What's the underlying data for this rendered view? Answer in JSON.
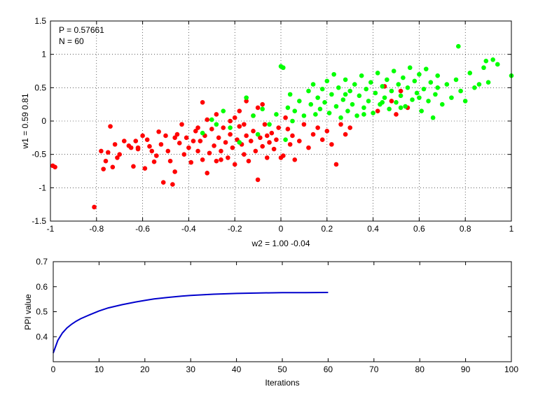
{
  "chart_data": [
    {
      "type": "scatter",
      "title": "",
      "xlabel": "w2 = 1.00  -0.04",
      "ylabel": "w1 = 0.59  0.81",
      "xlim": [
        -1,
        1
      ],
      "ylim": [
        -1.5,
        1.5
      ],
      "xticks": [
        -1,
        -0.8,
        -0.6,
        -0.4,
        -0.2,
        0,
        0.2,
        0.4,
        0.6,
        0.8,
        1
      ],
      "yticks": [
        -1.5,
        -1,
        -0.5,
        0,
        0.5,
        1,
        1.5
      ],
      "xtick_labels": [
        "-1",
        "-0.8",
        "-0.6",
        "-0.4",
        "-0.2",
        "0",
        "0.2",
        "0.4",
        "0.6",
        "0.8",
        "1"
      ],
      "ytick_labels": [
        "-1.5",
        "-1",
        "-0.5",
        "0",
        "0.5",
        "1",
        "1.5"
      ],
      "grid": true,
      "annotations": [
        "P = 0.57661",
        "N = 60"
      ],
      "series": [
        {
          "color": "#ff0000",
          "points": [
            [
              -0.99,
              -0.67
            ],
            [
              -0.98,
              -0.69
            ],
            [
              -0.81,
              -1.29
            ],
            [
              -0.78,
              -0.45
            ],
            [
              -0.77,
              -0.72
            ],
            [
              -0.76,
              -0.6
            ],
            [
              -0.75,
              -0.47
            ],
            [
              -0.74,
              -0.08
            ],
            [
              -0.73,
              -0.69
            ],
            [
              -0.72,
              -0.35
            ],
            [
              -0.71,
              -0.55
            ],
            [
              -0.7,
              -0.5
            ],
            [
              -0.68,
              -0.3
            ],
            [
              -0.66,
              -0.37
            ],
            [
              -0.65,
              -0.4
            ],
            [
              -0.64,
              -0.68
            ],
            [
              -0.63,
              -0.3
            ],
            [
              -0.62,
              -0.42
            ],
            [
              -0.6,
              -0.22
            ],
            [
              -0.59,
              -0.71
            ],
            [
              -0.58,
              -0.28
            ],
            [
              -0.57,
              -0.38
            ],
            [
              -0.55,
              -0.61
            ],
            [
              -0.54,
              -0.52
            ],
            [
              -0.53,
              -0.16
            ],
            [
              -0.52,
              -0.35
            ],
            [
              -0.51,
              -0.92
            ],
            [
              -0.5,
              -0.22
            ],
            [
              -0.49,
              -0.45
            ],
            [
              -0.48,
              -0.6
            ],
            [
              -0.47,
              -0.95
            ],
            [
              -0.46,
              -0.76
            ],
            [
              -0.45,
              -0.2
            ],
            [
              -0.44,
              -0.33
            ],
            [
              -0.43,
              -0.05
            ],
            [
              -0.42,
              -0.5
            ],
            [
              -0.41,
              -0.25
            ],
            [
              -0.4,
              -0.4
            ],
            [
              -0.39,
              -0.62
            ],
            [
              -0.38,
              -0.3
            ],
            [
              -0.37,
              -0.15
            ],
            [
              -0.36,
              -0.45
            ],
            [
              -0.35,
              -0.3
            ],
            [
              -0.34,
              -0.58
            ],
            [
              -0.33,
              -0.22
            ],
            [
              -0.32,
              -0.78
            ],
            [
              -0.31,
              -0.48
            ],
            [
              -0.3,
              -0.12
            ],
            [
              -0.29,
              -0.37
            ],
            [
              -0.28,
              -0.6
            ],
            [
              -0.27,
              -0.25
            ],
            [
              -0.26,
              -0.45
            ],
            [
              -0.25,
              -0.1
            ],
            [
              -0.24,
              -0.32
            ],
            [
              -0.23,
              -0.55
            ],
            [
              -0.22,
              -0.2
            ],
            [
              -0.21,
              -0.4
            ],
            [
              -0.2,
              -0.65
            ],
            [
              -0.19,
              -0.28
            ],
            [
              -0.18,
              -0.08
            ],
            [
              -0.17,
              -0.35
            ],
            [
              -0.16,
              -0.5
            ],
            [
              -0.15,
              -0.22
            ],
            [
              -0.14,
              -0.6
            ],
            [
              -0.13,
              -0.3
            ],
            [
              -0.12,
              -0.15
            ],
            [
              -0.11,
              -0.45
            ],
            [
              -0.1,
              -0.88
            ],
            [
              -0.09,
              -0.25
            ],
            [
              -0.08,
              -0.38
            ],
            [
              -0.07,
              -0.05
            ],
            [
              -0.06,
              -0.55
            ],
            [
              -0.05,
              -0.32
            ],
            [
              -0.04,
              -0.18
            ],
            [
              -0.03,
              -0.42
            ],
            [
              -0.02,
              -0.28
            ],
            [
              -0.01,
              -0.1
            ],
            [
              0.0,
              -0.55
            ],
            [
              0.01,
              -0.52
            ],
            [
              0.03,
              -0.12
            ],
            [
              0.04,
              -0.35
            ],
            [
              0.05,
              -0.22
            ],
            [
              0.06,
              -0.58
            ],
            [
              0.08,
              -0.3
            ],
            [
              0.1,
              -0.05
            ],
            [
              0.12,
              -0.4
            ],
            [
              0.14,
              -0.2
            ],
            [
              0.16,
              -0.1
            ],
            [
              0.18,
              -0.28
            ],
            [
              0.2,
              -0.15
            ],
            [
              0.22,
              -0.35
            ],
            [
              0.24,
              -0.65
            ],
            [
              0.26,
              -0.05
            ],
            [
              0.28,
              -0.2
            ],
            [
              0.3,
              -0.1
            ],
            [
              -0.62,
              -0.4
            ],
            [
              -0.56,
              -0.45
            ],
            [
              -0.46,
              -0.25
            ],
            [
              -0.36,
              -0.1
            ],
            [
              -0.26,
              -0.58
            ],
            [
              -0.16,
              -0.05
            ],
            [
              -0.06,
              -0.22
            ],
            [
              0.02,
              0.05
            ],
            [
              -0.32,
              0.02
            ],
            [
              -0.28,
              0.1
            ],
            [
              -0.22,
              0.0
            ],
            [
              -0.18,
              0.15
            ],
            [
              -0.12,
              0.08
            ],
            [
              -0.08,
              0.25
            ],
            [
              -0.15,
              0.3
            ],
            [
              -0.34,
              0.28
            ],
            [
              -0.1,
              0.2
            ],
            [
              -0.2,
              0.05
            ],
            [
              0.5,
              0.1
            ],
            [
              0.52,
              0.45
            ],
            [
              0.55,
              0.2
            ],
            [
              0.48,
              0.3
            ],
            [
              0.42,
              0.15
            ],
            [
              0.45,
              0.52
            ]
          ]
        },
        {
          "color": "#00ff00",
          "points": [
            [
              -0.34,
              -0.18
            ],
            [
              -0.3,
              0.02
            ],
            [
              -0.28,
              -0.05
            ],
            [
              -0.25,
              0.15
            ],
            [
              -0.22,
              -0.1
            ],
            [
              -0.18,
              -0.32
            ],
            [
              -0.15,
              0.35
            ],
            [
              -0.12,
              0.08
            ],
            [
              -0.1,
              -0.2
            ],
            [
              -0.08,
              0.18
            ],
            [
              -0.05,
              -0.05
            ],
            [
              -0.02,
              0.1
            ],
            [
              0.0,
              0.82
            ],
            [
              0.01,
              0.8
            ],
            [
              0.02,
              -0.28
            ],
            [
              0.03,
              0.2
            ],
            [
              0.04,
              0.4
            ],
            [
              0.05,
              0.0
            ],
            [
              0.06,
              0.15
            ],
            [
              0.08,
              0.3
            ],
            [
              0.1,
              0.08
            ],
            [
              0.12,
              0.45
            ],
            [
              0.13,
              0.25
            ],
            [
              0.14,
              0.55
            ],
            [
              0.15,
              0.1
            ],
            [
              0.16,
              0.35
            ],
            [
              0.17,
              0.18
            ],
            [
              0.18,
              0.48
            ],
            [
              0.19,
              0.28
            ],
            [
              0.2,
              0.6
            ],
            [
              0.21,
              0.12
            ],
            [
              0.22,
              0.4
            ],
            [
              0.23,
              0.7
            ],
            [
              0.24,
              0.22
            ],
            [
              0.25,
              0.5
            ],
            [
              0.26,
              0.05
            ],
            [
              0.27,
              0.32
            ],
            [
              0.28,
              0.62
            ],
            [
              0.29,
              0.15
            ],
            [
              0.3,
              0.45
            ],
            [
              0.31,
              0.25
            ],
            [
              0.32,
              0.55
            ],
            [
              0.33,
              0.08
            ],
            [
              0.34,
              0.38
            ],
            [
              0.35,
              0.68
            ],
            [
              0.36,
              0.2
            ],
            [
              0.37,
              0.48
            ],
            [
              0.38,
              0.3
            ],
            [
              0.39,
              0.58
            ],
            [
              0.4,
              0.12
            ],
            [
              0.41,
              0.42
            ],
            [
              0.42,
              0.72
            ],
            [
              0.43,
              0.25
            ],
            [
              0.44,
              0.52
            ],
            [
              0.45,
              0.35
            ],
            [
              0.46,
              0.62
            ],
            [
              0.47,
              0.18
            ],
            [
              0.48,
              0.45
            ],
            [
              0.49,
              0.75
            ],
            [
              0.5,
              0.28
            ],
            [
              0.51,
              0.55
            ],
            [
              0.52,
              0.38
            ],
            [
              0.53,
              0.65
            ],
            [
              0.54,
              0.22
            ],
            [
              0.55,
              0.5
            ],
            [
              0.56,
              0.8
            ],
            [
              0.57,
              0.32
            ],
            [
              0.58,
              0.6
            ],
            [
              0.59,
              0.42
            ],
            [
              0.6,
              0.7
            ],
            [
              0.61,
              0.15
            ],
            [
              0.62,
              0.48
            ],
            [
              0.63,
              0.78
            ],
            [
              0.64,
              0.3
            ],
            [
              0.65,
              0.58
            ],
            [
              0.66,
              0.05
            ],
            [
              0.67,
              0.4
            ],
            [
              0.68,
              0.68
            ],
            [
              0.7,
              0.25
            ],
            [
              0.72,
              0.55
            ],
            [
              0.74,
              0.35
            ],
            [
              0.76,
              0.62
            ],
            [
              0.77,
              1.12
            ],
            [
              0.78,
              0.45
            ],
            [
              0.8,
              0.3
            ],
            [
              0.82,
              0.72
            ],
            [
              0.84,
              0.5
            ],
            [
              0.86,
              0.55
            ],
            [
              0.88,
              0.8
            ],
            [
              0.89,
              0.9
            ],
            [
              0.9,
              0.58
            ],
            [
              0.92,
              0.92
            ],
            [
              0.94,
              0.85
            ],
            [
              1.0,
              0.68
            ],
            [
              0.36,
              0.1
            ],
            [
              0.28,
              0.4
            ],
            [
              0.44,
              0.28
            ],
            [
              0.52,
              0.2
            ],
            [
              0.6,
              0.35
            ],
            [
              0.68,
              0.5
            ]
          ]
        }
      ]
    },
    {
      "type": "line",
      "title": "",
      "xlabel": "Iterations",
      "ylabel": "PPI value",
      "xlim": [
        0,
        100
      ],
      "ylim": [
        0.3,
        0.7
      ],
      "xticks": [
        0,
        10,
        20,
        30,
        40,
        50,
        60,
        70,
        80,
        90,
        100
      ],
      "yticks": [
        0.4,
        0.5,
        0.6,
        0.7
      ],
      "xtick_labels": [
        "0",
        "10",
        "20",
        "30",
        "40",
        "50",
        "60",
        "70",
        "80",
        "90",
        "100"
      ],
      "ytick_labels": [
        "0.4",
        "0.5",
        "0.6",
        "0.7"
      ],
      "grid": false,
      "series": [
        {
          "color": "#0000cc",
          "x": [
            0,
            1,
            2,
            3,
            4,
            5,
            6,
            8,
            10,
            12,
            15,
            18,
            20,
            22,
            25,
            28,
            30,
            35,
            40,
            45,
            50,
            55,
            60
          ],
          "y": [
            0.335,
            0.385,
            0.415,
            0.435,
            0.45,
            0.462,
            0.472,
            0.488,
            0.503,
            0.515,
            0.528,
            0.539,
            0.545,
            0.551,
            0.557,
            0.562,
            0.565,
            0.57,
            0.573,
            0.575,
            0.576,
            0.5765,
            0.577
          ]
        }
      ]
    }
  ]
}
